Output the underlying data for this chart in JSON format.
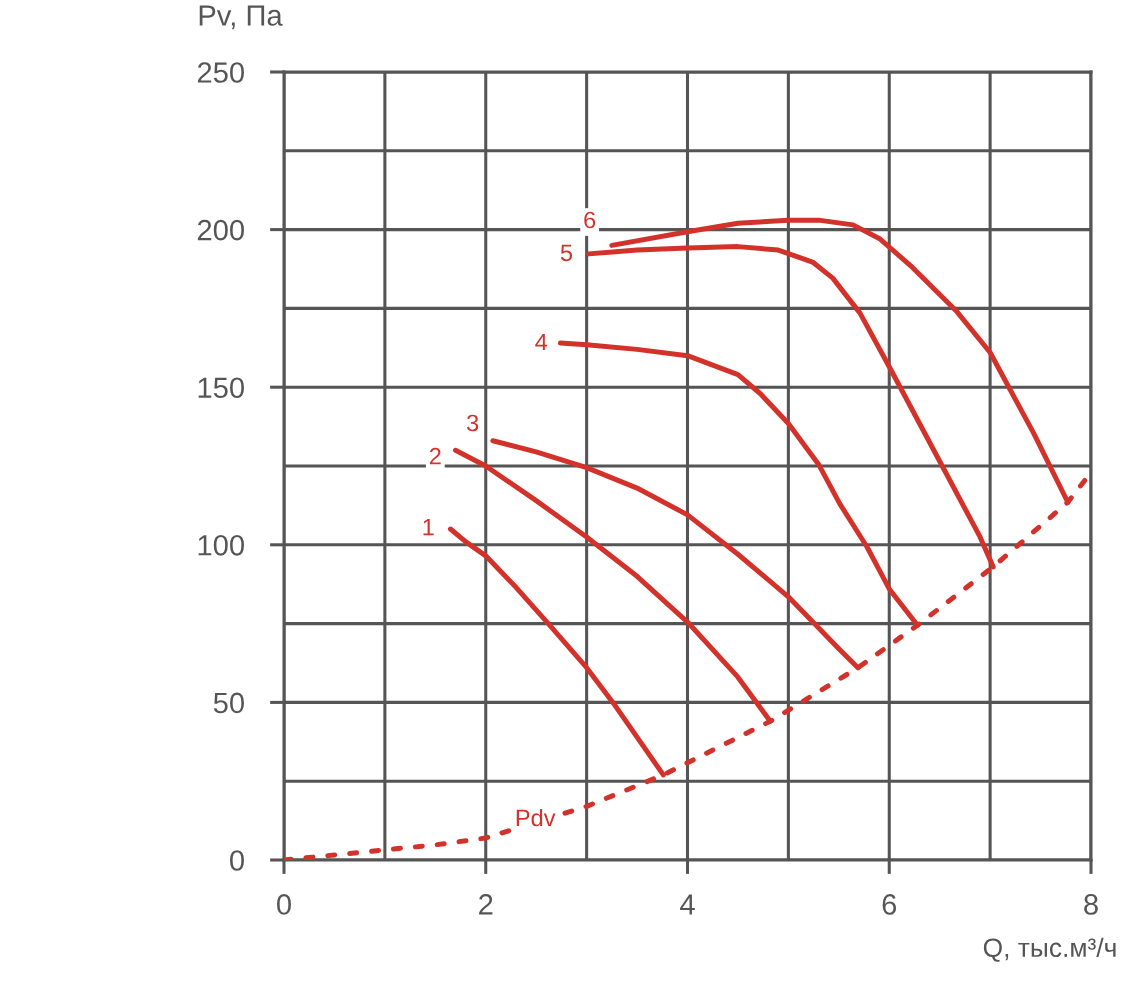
{
  "chart_data": {
    "type": "line",
    "xlabel": "Q, тыс.м³/ч",
    "ylabel": "Pv, Па",
    "xlim": [
      0,
      8
    ],
    "ylim": [
      0,
      250
    ],
    "xticks": [
      0,
      {
        "value": 1,
        "label": null
      },
      2,
      {
        "value": 3,
        "label": null
      },
      4,
      {
        "value": 5,
        "label": null
      },
      6,
      {
        "value": 7,
        "label": null
      },
      8
    ],
    "yticks": [
      0,
      {
        "value": 25,
        "label": null
      },
      50,
      {
        "value": 75,
        "label": null
      },
      100,
      {
        "value": 125,
        "label": null
      },
      150,
      {
        "value": 175,
        "label": null
      },
      200,
      {
        "value": 225,
        "label": null
      },
      250
    ],
    "grid": true,
    "series": [
      {
        "color": "#d3322b",
        "x": [
          1.65,
          1.8,
          2.0,
          2.3,
          2.62,
          3.0,
          3.26,
          3.5,
          3.76
        ],
        "values": [
          105,
          101,
          96.5,
          86.5,
          75,
          61,
          50,
          39,
          27
        ]
      },
      {
        "color": "#d3322b",
        "x": [
          1.7,
          2.0,
          2.5,
          3.0,
          3.5,
          4.0,
          4.5,
          4.82
        ],
        "values": [
          130,
          125,
          114,
          102.5,
          90,
          75.5,
          58,
          44
        ]
      },
      {
        "color": "#d3322b",
        "x": [
          2.07,
          2.5,
          3.0,
          3.5,
          4.0,
          4.5,
          5.0,
          5.5,
          5.69
        ],
        "values": [
          133,
          129.5,
          124.5,
          118,
          109.5,
          97,
          83.5,
          67,
          61
        ]
      },
      {
        "color": "#d3322b",
        "x": [
          2.74,
          3.0,
          3.5,
          4.0,
          4.5,
          4.72,
          5.0,
          5.3,
          5.51,
          5.78,
          6.0,
          6.28
        ],
        "values": [
          164,
          163.5,
          162,
          160,
          154,
          148,
          138.5,
          125.5,
          113,
          99.3,
          86,
          74.5
        ]
      },
      {
        "color": "#d3322b",
        "x": [
          3.02,
          3.5,
          4.0,
          4.5,
          4.9,
          5.24,
          5.44,
          5.71,
          6.0,
          6.5,
          6.9,
          7.03
        ],
        "values": [
          192.3,
          193.5,
          194.2,
          194.6,
          193.5,
          189.7,
          184.6,
          173.5,
          156.5,
          126.5,
          102.5,
          93
        ]
      },
      {
        "color": "#d3322b",
        "x": [
          3.25,
          4.0,
          4.5,
          5.0,
          5.3,
          5.64,
          5.91,
          6.23,
          6.67,
          7.0,
          7.43,
          7.77
        ],
        "values": [
          195,
          199.3,
          202,
          203,
          203,
          201.5,
          197,
          188,
          174,
          161,
          135.5,
          113.5
        ]
      },
      {
        "color": "#d3322b",
        "line_style": "dashed",
        "x": [
          0,
          0.5,
          1.0,
          1.5,
          2.0,
          3.0,
          3.76,
          4.82,
          5.69,
          6.28,
          7.03,
          7.77,
          8.0
        ],
        "values": [
          0,
          1.6,
          3.2,
          4.8,
          7,
          17,
          27,
          44,
          61,
          74.5,
          93,
          113.5,
          123
        ]
      }
    ],
    "annotations": [
      {
        "text": "1",
        "x": 1.43,
        "y": 105
      },
      {
        "text": "2",
        "x": 1.5,
        "y": 127.5
      },
      {
        "text": "3",
        "x": 1.87,
        "y": 138
      },
      {
        "text": "4",
        "x": 2.55,
        "y": 163.7
      },
      {
        "text": "5",
        "x": 2.8,
        "y": 192
      },
      {
        "text": "6",
        "x": 3.03,
        "y": 202.4
      },
      {
        "text": "Pdv",
        "x": 2.49,
        "y": 12.7
      }
    ]
  }
}
